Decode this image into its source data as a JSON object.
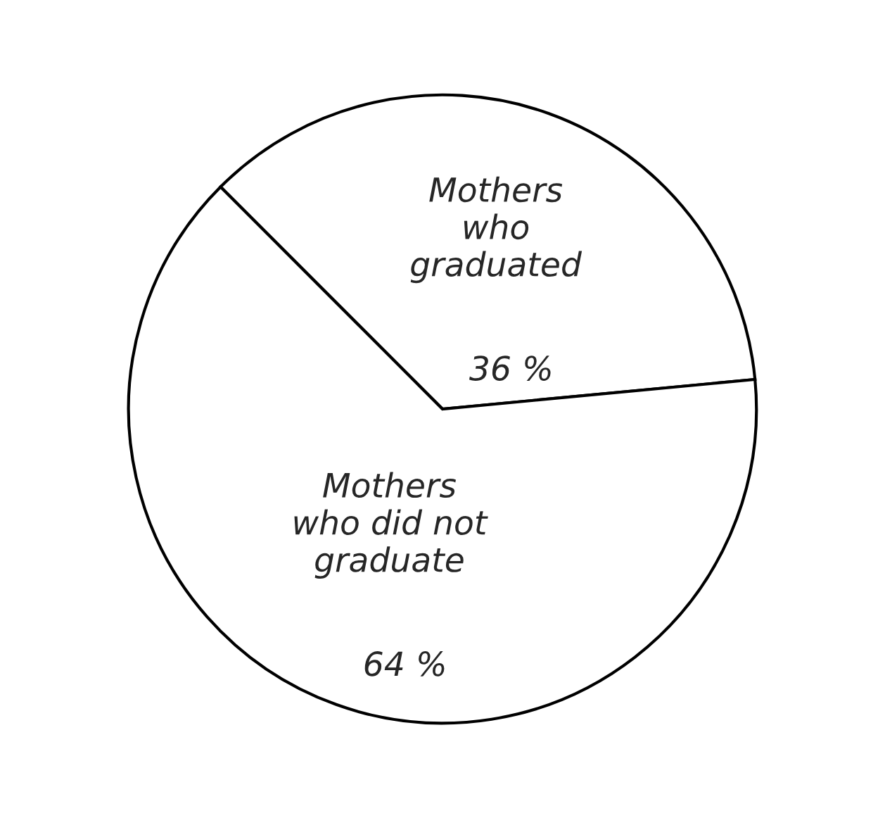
{
  "chart_data": {
    "type": "pie",
    "categories": [
      "Mothers\nwho\ngraduated",
      "Mothers\nwho did not\ngraduate"
    ],
    "values": [
      36,
      64
    ],
    "value_labels": [
      "36 %",
      "64 %"
    ],
    "colors": [
      "#ffffff",
      "#ffffff"
    ],
    "legend": false
  }
}
